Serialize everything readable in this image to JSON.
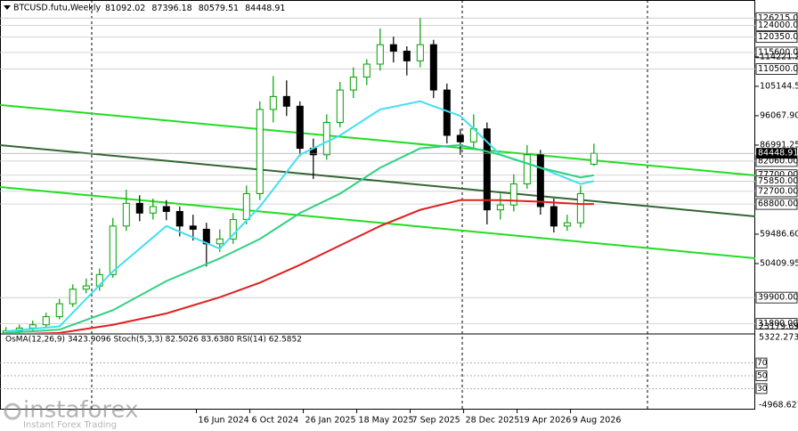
{
  "chart_data": {
    "type": "candlestick",
    "title": "BTCUSD.futu,Weekly",
    "xlim": [
      -0.8,
      225.3
    ],
    "ylim": [
      26200,
      131800
    ],
    "candles": {
      "up_color": "#00a000",
      "down_color": "#000000",
      "x": [
        1,
        5,
        9,
        13,
        17,
        21,
        25,
        29,
        33,
        37,
        41,
        45,
        49,
        53,
        57,
        61,
        65,
        69,
        73,
        77,
        81,
        85,
        89,
        93,
        97,
        101,
        105,
        109,
        113,
        117,
        121,
        125,
        129,
        133,
        137,
        141,
        145,
        149,
        153,
        157,
        161,
        165,
        169,
        173,
        177
      ],
      "open": [
        29000,
        29600,
        30500,
        31500,
        34000,
        38000,
        42500,
        43500,
        47000,
        62000,
        69000,
        66000,
        68000,
        66500,
        62000,
        61000,
        56500,
        58000,
        64000,
        72000,
        98000,
        102000,
        99000,
        86000,
        84000,
        94000,
        104000,
        108000,
        112000,
        118000,
        116000,
        113000,
        118000,
        104000,
        90000,
        88000,
        92000,
        67000,
        68500,
        75000,
        84000,
        68000,
        62000,
        63000,
        81092.02
      ],
      "high": [
        30800,
        31600,
        32800,
        35200,
        39500,
        44000,
        45800,
        48900,
        64500,
        73200,
        71500,
        70500,
        70000,
        68000,
        65500,
        63000,
        61000,
        66000,
        74500,
        100500,
        108300,
        107000,
        100500,
        89000,
        96500,
        106500,
        111000,
        113500,
        123000,
        120500,
        117500,
        126200,
        119500,
        106000,
        92000,
        96500,
        94000,
        72000,
        78000,
        87000,
        85500,
        70500,
        65500,
        74500,
        87396.18
      ],
      "low": [
        28200,
        28900,
        29700,
        30800,
        33200,
        37000,
        41200,
        42000,
        46000,
        60500,
        63500,
        64000,
        63800,
        58800,
        57500,
        49500,
        54000,
        56500,
        62500,
        70000,
        94000,
        96000,
        83500,
        76500,
        82500,
        92500,
        101500,
        105500,
        110000,
        112500,
        108500,
        111000,
        101500,
        87500,
        84000,
        86000,
        62500,
        64000,
        66500,
        73500,
        65500,
        60000,
        60500,
        61500,
        80579.51
      ],
      "close": [
        29600,
        30500,
        31500,
        34000,
        38000,
        42500,
        43500,
        47000,
        62000,
        69000,
        66000,
        68000,
        66500,
        62000,
        61000,
        56500,
        58000,
        64000,
        72000,
        98000,
        102000,
        99000,
        86000,
        84000,
        94000,
        104000,
        108000,
        112000,
        118000,
        116000,
        113000,
        118000,
        104000,
        90000,
        88000,
        92000,
        67000,
        68500,
        75000,
        84000,
        68000,
        62000,
        63000,
        72000,
        84448.91
      ]
    },
    "series": [
      {
        "color": "#40e0f0",
        "x": [
          1,
          17,
          33,
          49,
          65,
          77,
          89,
          101,
          113,
          125,
          137,
          149,
          161,
          173,
          177
        ],
        "values": [
          29500,
          31000,
          48000,
          62000,
          55000,
          68000,
          84000,
          90000,
          98000,
          100500,
          96000,
          84000,
          80000,
          75000,
          75850
        ]
      },
      {
        "color": "#30d080",
        "x": [
          1,
          17,
          33,
          49,
          65,
          77,
          89,
          101,
          113,
          125,
          137,
          149,
          161,
          173,
          177
        ],
        "values": [
          29000,
          30000,
          36000,
          45000,
          52000,
          58000,
          66000,
          72000,
          80000,
          86000,
          87000,
          84000,
          80000,
          77000,
          77700
        ]
      },
      {
        "color": "#e02020",
        "x": [
          1,
          17,
          33,
          49,
          65,
          77,
          89,
          101,
          113,
          125,
          137,
          149,
          161,
          173,
          177
        ],
        "values": [
          28500,
          29000,
          31500,
          35000,
          40000,
          44500,
          50000,
          56000,
          62000,
          67000,
          70000,
          70000,
          69500,
          68800,
          68800
        ]
      }
    ],
    "trendlines": [
      {
        "color": "#22dd22",
        "x": [
          -0.8,
          225.3
        ],
        "values": [
          99400,
          77640
        ]
      },
      {
        "color": "#22dd22",
        "x": [
          -0.8,
          225.3
        ],
        "values": [
          74066,
          52064
        ]
      },
      {
        "color": "#336633",
        "x": [
          -0.8,
          225.3
        ],
        "values": [
          86990,
          64990
        ]
      }
    ],
    "yticks": [
      {
        "value": 114221.2,
        "label": "114221.20"
      },
      {
        "value": 105144.55,
        "label": "105144.55"
      },
      {
        "value": 96067.9,
        "label": "96067.90"
      },
      {
        "value": 86991.25,
        "label": "86991.25"
      },
      {
        "value": 59486.6,
        "label": "59486.60"
      },
      {
        "value": 50409.95,
        "label": "50409.95"
      }
    ],
    "scale_bottom_label": "23179.69",
    "levels": [
      {
        "value": 126215,
        "label": "126215.00"
      },
      {
        "value": 124000,
        "label": "124000.00"
      },
      {
        "value": 120350,
        "label": "120350.00"
      },
      {
        "value": 115600,
        "label": "115600.00"
      },
      {
        "value": 110500,
        "label": "110500.00"
      },
      {
        "value": 82060,
        "label": "82060.00"
      },
      {
        "value": 77700,
        "label": "77700.00"
      },
      {
        "value": 75850,
        "label": "75850.00"
      },
      {
        "value": 72700,
        "label": "72700.00"
      },
      {
        "value": 68800,
        "label": "68800.00"
      },
      {
        "value": 39900,
        "label": "39900.00"
      },
      {
        "value": 31800,
        "label": "31800.00"
      }
    ],
    "xticks": [
      {
        "value": 58,
        "label": "16 Jun 2024"
      },
      {
        "value": 74,
        "label": "6 Oct 2024"
      },
      {
        "value": 90,
        "label": "26 Jan 2025"
      },
      {
        "value": 106,
        "label": "18 May 2025"
      },
      {
        "value": 122,
        "label": "7 Sep 2025"
      },
      {
        "value": 138,
        "label": "28 Dec 2025"
      },
      {
        "value": 154,
        "label": "19 Apr 2026"
      },
      {
        "value": 170,
        "label": "9 Aug 2026"
      }
    ],
    "indicator": {
      "label": "OsMA(12,26,9) 3423.9096  Stoch(5,3,3) 82.5026 83.6380  RSI(14) 62.5852",
      "ylim": [
        0,
        100
      ],
      "yticks": [
        70,
        50,
        30
      ],
      "scale_top": "5322.2737",
      "scale_bottom": "-4968.6275"
    },
    "watermark": {
      "brand": "instaforex",
      "tagline": "Instant Forex Trading"
    }
  }
}
